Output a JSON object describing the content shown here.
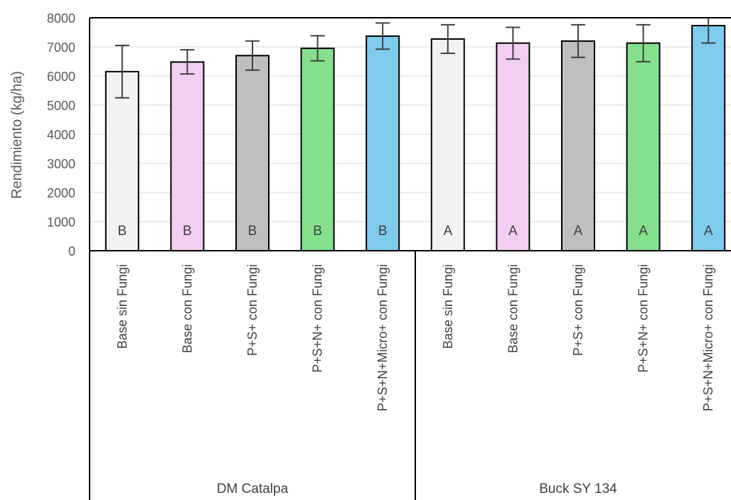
{
  "chart_data": {
    "type": "bar",
    "ylabel": "Rendimiento (kg/ha)",
    "ylim": [
      0,
      8000
    ],
    "yticks": [
      0,
      1000,
      2000,
      3000,
      4000,
      5000,
      6000,
      7000,
      8000
    ],
    "grid": true,
    "groups": [
      {
        "name": "DM Catalpa",
        "bars": [
          {
            "label": "Base sin Fungi",
            "value": 6150,
            "err_low": 5250,
            "err_high": 7050,
            "letter": "B",
            "color": "#f2f2f2"
          },
          {
            "label": "Base con Fungi",
            "value": 6480,
            "err_low": 6070,
            "err_high": 6900,
            "letter": "B",
            "color": "#f2cef0"
          },
          {
            "label": "P+S+ con Fungi",
            "value": 6700,
            "err_low": 6200,
            "err_high": 7200,
            "letter": "B",
            "color": "#bfbfbf"
          },
          {
            "label": "P+S+N+ con Fungi",
            "value": 6950,
            "err_low": 6520,
            "err_high": 7380,
            "letter": "B",
            "color": "#84e08c"
          },
          {
            "label": "P+S+N+Micro+ con Fungi",
            "value": 7370,
            "err_low": 6920,
            "err_high": 7820,
            "letter": "B",
            "color": "#7fcbeb"
          }
        ]
      },
      {
        "name": "Buck SY 134",
        "bars": [
          {
            "label": "Base sin Fungi",
            "value": 7270,
            "err_low": 6780,
            "err_high": 7760,
            "letter": "A",
            "color": "#f2f2f2"
          },
          {
            "label": "Base con Fungi",
            "value": 7130,
            "err_low": 6580,
            "err_high": 7670,
            "letter": "A",
            "color": "#f2cef0"
          },
          {
            "label": "P+S+ con Fungi",
            "value": 7200,
            "err_low": 6640,
            "err_high": 7760,
            "letter": "A",
            "color": "#bfbfbf"
          },
          {
            "label": "P+S+N+ con Fungi",
            "value": 7130,
            "err_low": 6490,
            "err_high": 7760,
            "letter": "A",
            "color": "#84e08c"
          },
          {
            "label": "P+S+N+Micro+ con Fungi",
            "value": 7730,
            "err_low": 7130,
            "err_high": 8000,
            "letter": "A",
            "color": "#7fcbeb"
          }
        ]
      }
    ]
  }
}
